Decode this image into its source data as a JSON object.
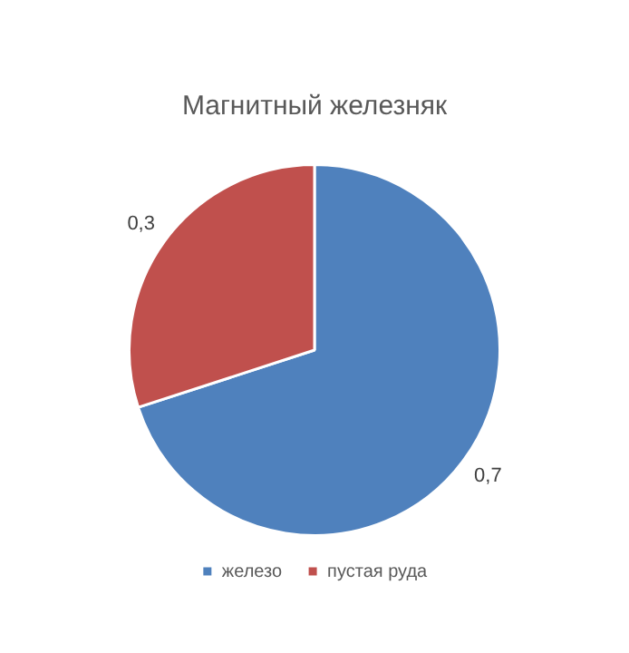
{
  "chart_data": {
    "type": "pie",
    "title": "Магнитный железняк",
    "categories": [
      "железо",
      "пустая руда"
    ],
    "values": [
      0.7,
      0.3
    ],
    "colors": [
      "#4f81bd",
      "#c0504d"
    ],
    "value_labels": [
      "0,7",
      "0,3"
    ],
    "legend": "bottom"
  }
}
